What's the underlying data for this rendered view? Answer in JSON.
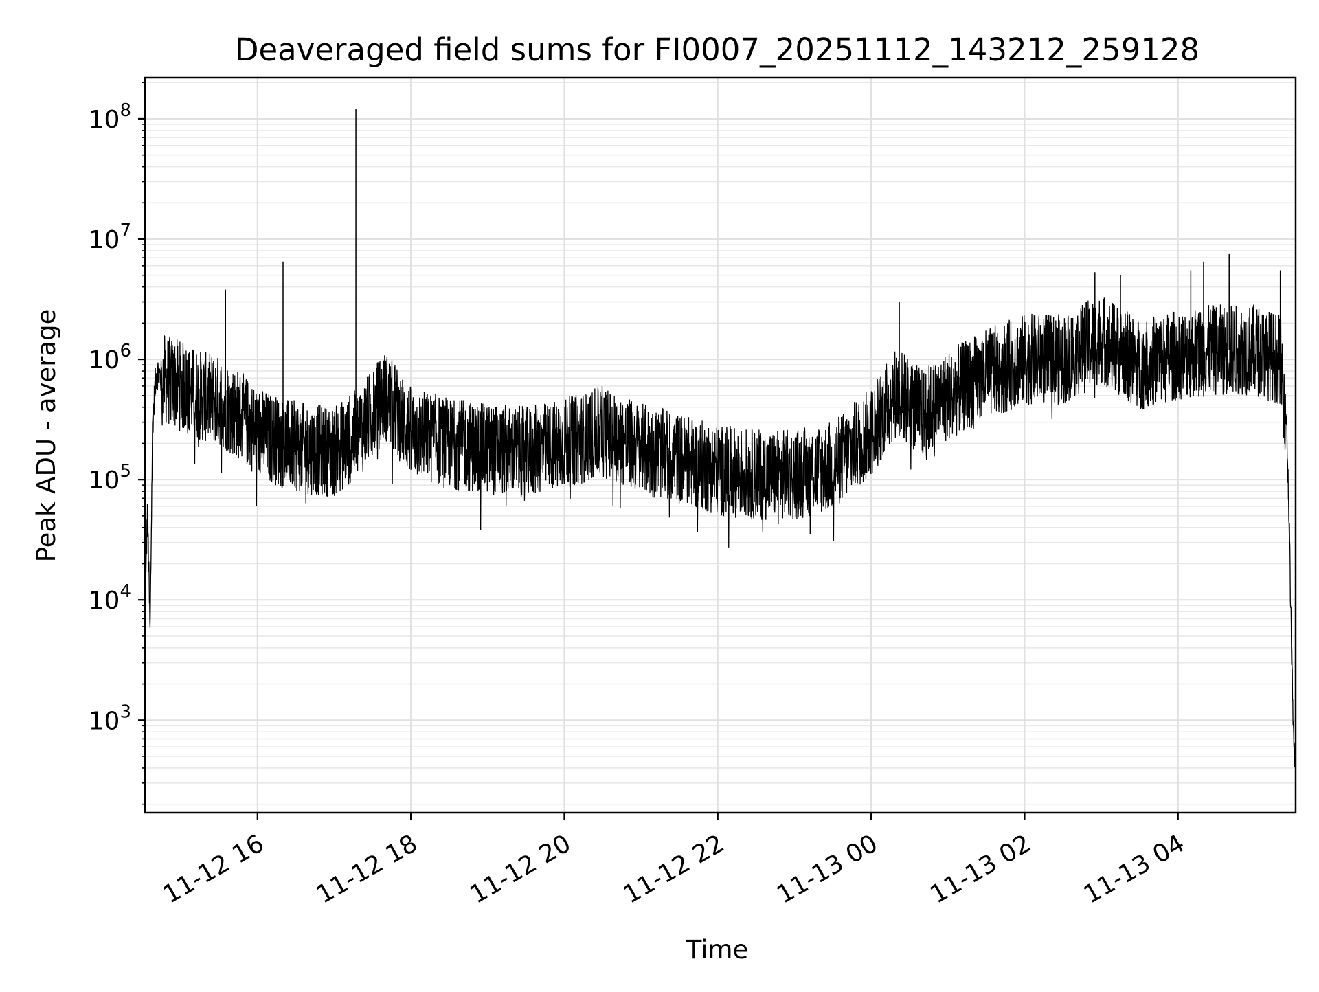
{
  "chart_data": {
    "type": "line",
    "title": "Deaveraged field sums for FI0007_20251112_143212_259128",
    "xlabel": "Time",
    "ylabel": "Peak ADU - average",
    "y_scale": "log",
    "ylim": [
      170,
      220000000
    ],
    "xlim": [
      "2025-11-12 14:32",
      "2025-11-13 05:32"
    ],
    "x_ticks": [
      "2025-11-12 16:00",
      "2025-11-12 18:00",
      "2025-11-12 20:00",
      "2025-11-12 22:00",
      "2025-11-13 00:00",
      "2025-11-13 02:00",
      "2025-11-13 04:00"
    ],
    "x_tick_labels": [
      "11-12 16",
      "11-12 18",
      "11-12 20",
      "11-12 22",
      "11-13 00",
      "11-13 02",
      "11-13 04"
    ],
    "y_ticks": [
      1000,
      10000,
      100000,
      1000000,
      10000000,
      100000000
    ],
    "y_tick_labels": [
      {
        "base": "10",
        "exp": "3"
      },
      {
        "base": "10",
        "exp": "4"
      },
      {
        "base": "10",
        "exp": "5"
      },
      {
        "base": "10",
        "exp": "6"
      },
      {
        "base": "10",
        "exp": "7"
      },
      {
        "base": "10",
        "exp": "8"
      }
    ],
    "grid": true,
    "line_color": "#000000",
    "series": [
      {
        "x": [
          "2025-11-12 14:32",
          "2025-11-12 14:34",
          "2025-11-12 14:36",
          "2025-11-12 14:38",
          "2025-11-12 14:41",
          "2025-11-12 14:45",
          "2025-11-12 15:00",
          "2025-11-12 15:15",
          "2025-11-12 15:30",
          "2025-11-12 15:45",
          "2025-11-12 16:00",
          "2025-11-12 16:20",
          "2025-11-12 16:40",
          "2025-11-12 17:00",
          "2025-11-12 17:20",
          "2025-11-12 17:40",
          "2025-11-12 18:00",
          "2025-11-12 18:30",
          "2025-11-12 19:00",
          "2025-11-12 19:30",
          "2025-11-12 20:00",
          "2025-11-12 20:30",
          "2025-11-12 21:00",
          "2025-11-12 21:30",
          "2025-11-12 22:00",
          "2025-11-12 22:30",
          "2025-11-12 23:00",
          "2025-11-12 23:30",
          "2025-11-13 00:00",
          "2025-11-13 00:20",
          "2025-11-13 00:40",
          "2025-11-13 01:00",
          "2025-11-13 01:30",
          "2025-11-13 02:00",
          "2025-11-13 02:30",
          "2025-11-13 03:00",
          "2025-11-13 03:30",
          "2025-11-13 04:00",
          "2025-11-13 04:30",
          "2025-11-13 05:00",
          "2025-11-13 05:20",
          "2025-11-13 05:25",
          "2025-11-13 05:27",
          "2025-11-13 05:29",
          "2025-11-13 05:31",
          "2025-11-13 05:32"
        ],
        "y": [
          6000,
          60000,
          5000,
          300000,
          800000,
          700000,
          600000,
          500000,
          450000,
          350000,
          250000,
          200000,
          180000,
          170000,
          250000,
          500000,
          250000,
          200000,
          180000,
          170000,
          200000,
          250000,
          180000,
          150000,
          120000,
          110000,
          110000,
          130000,
          250000,
          550000,
          350000,
          500000,
          750000,
          1000000,
          1000000,
          1500000,
          900000,
          1100000,
          1200000,
          1200000,
          1000000,
          300000,
          40000,
          3000,
          400,
          800
        ]
      }
    ],
    "spikes": [
      {
        "x": "2025-11-12 17:17",
        "y": 120000000
      },
      {
        "x": "2025-11-12 16:20",
        "y": 6500000
      },
      {
        "x": "2025-11-12 15:35",
        "y": 3800000
      },
      {
        "x": "2025-11-13 00:22",
        "y": 3000000
      },
      {
        "x": "2025-11-13 04:40",
        "y": 7500000
      },
      {
        "x": "2025-11-13 04:20",
        "y": 6500000
      },
      {
        "x": "2025-11-13 04:10",
        "y": 5500000
      },
      {
        "x": "2025-11-13 05:20",
        "y": 5500000
      },
      {
        "x": "2025-11-13 03:15",
        "y": 5000000
      },
      {
        "x": "2025-11-13 02:55",
        "y": 5300000
      }
    ]
  }
}
